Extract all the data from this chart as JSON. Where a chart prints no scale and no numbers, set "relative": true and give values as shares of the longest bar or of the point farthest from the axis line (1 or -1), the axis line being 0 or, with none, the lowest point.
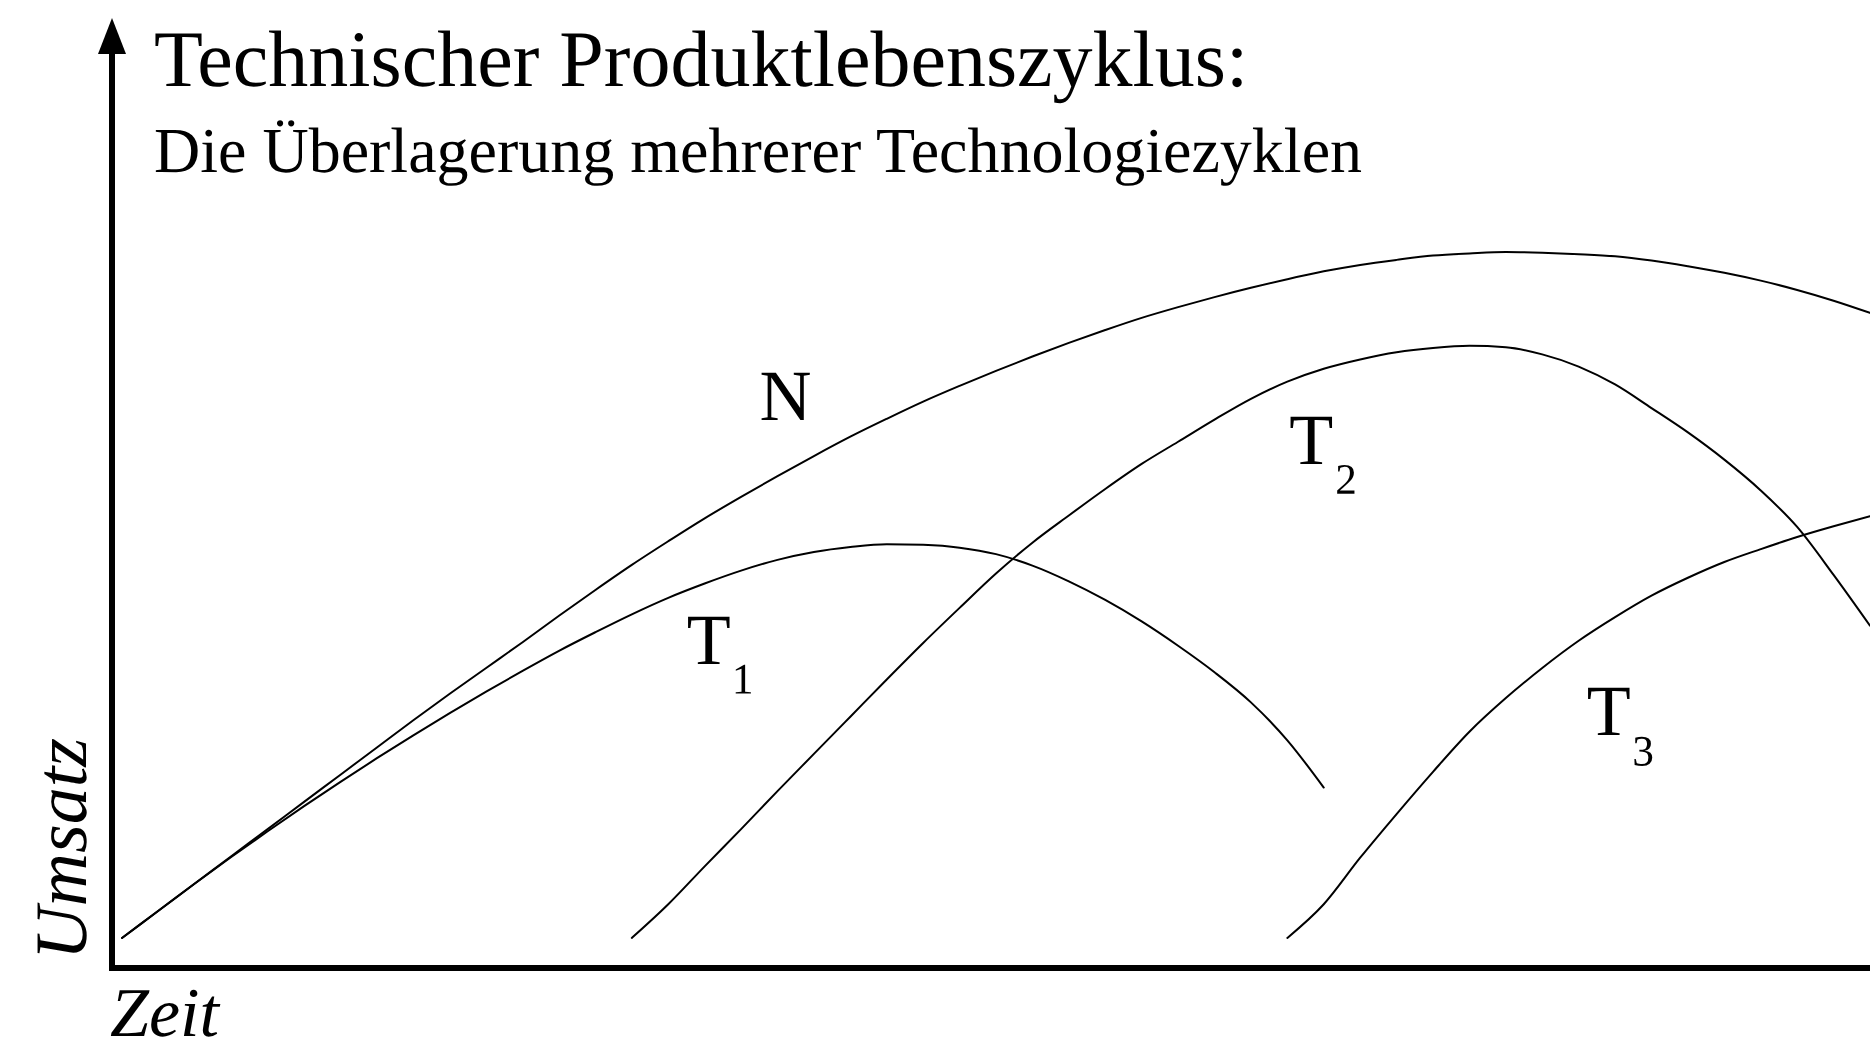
{
  "chart_data": {
    "type": "line",
    "title": "Technischer Produktlebenszyklus:",
    "subtitle": "Die Überlagerung mehrerer Technologiezyklen",
    "xlabel": "Zeit",
    "ylabel": "Umsatz",
    "relative": true,
    "categories": [
      null,
      null,
      null,
      null,
      null,
      null,
      null,
      null,
      null,
      null,
      null,
      null,
      null,
      null,
      null,
      null,
      null,
      null,
      null,
      null,
      null,
      null,
      null,
      null,
      null,
      null,
      null,
      null,
      null,
      null,
      null,
      null,
      null,
      null,
      null,
      null,
      null,
      null,
      null,
      null,
      null,
      null,
      null,
      null,
      null,
      null,
      null,
      null,
      null
    ],
    "series": [
      {
        "name": "N",
        "color": "#000000",
        "values": [
          0.042,
          0.08,
          0.118,
          0.156,
          0.194,
          0.232,
          0.27,
          0.308,
          0.346,
          0.383,
          0.419,
          0.455,
          0.492,
          0.528,
          0.563,
          0.596,
          0.628,
          0.658,
          0.687,
          0.715,
          0.742,
          0.767,
          0.791,
          0.813,
          0.834,
          0.854,
          0.873,
          0.891,
          0.908,
          0.923,
          0.937,
          0.95,
          0.962,
          0.973,
          0.982,
          0.989,
          0.995,
          0.998,
          1.0,
          0.999,
          0.997,
          0.994,
          0.988,
          0.98,
          0.971,
          0.96,
          0.947,
          0.932,
          0.915
        ]
      },
      {
        "name": "T₁",
        "color": "#000000",
        "values": [
          0.042,
          0.08,
          0.118,
          0.155,
          0.191,
          0.226,
          0.26,
          0.293,
          0.325,
          0.356,
          0.386,
          0.415,
          0.443,
          0.469,
          0.494,
          0.517,
          0.537,
          0.555,
          0.57,
          0.581,
          0.588,
          0.592,
          0.591,
          0.587,
          0.578,
          0.562,
          0.54,
          0.514,
          0.484,
          0.45,
          0.413,
          0.371,
          0.318,
          0.252,
          null,
          null,
          null,
          null,
          null,
          null,
          null,
          null,
          null,
          null,
          null,
          null,
          null,
          null,
          null
        ]
      },
      {
        "name": "T₂",
        "color": "#000000",
        "values": [
          null,
          null,
          null,
          null,
          null,
          null,
          null,
          null,
          null,
          null,
          null,
          null,
          null,
          null,
          0.042,
          0.089,
          0.142,
          0.194,
          0.247,
          0.299,
          0.351,
          0.403,
          0.454,
          0.503,
          0.551,
          0.594,
          0.632,
          0.669,
          0.704,
          0.735,
          0.766,
          0.795,
          0.819,
          0.837,
          0.85,
          0.86,
          0.866,
          0.869,
          0.867,
          0.857,
          0.84,
          0.815,
          0.782,
          0.748,
          0.71,
          0.667,
          0.616,
          0.549,
          0.478
        ]
      },
      {
        "name": "T₃",
        "color": "#000000",
        "values": [
          null,
          null,
          null,
          null,
          null,
          null,
          null,
          null,
          null,
          null,
          null,
          null,
          null,
          null,
          null,
          null,
          null,
          null,
          null,
          null,
          null,
          null,
          null,
          null,
          null,
          null,
          null,
          null,
          null,
          null,
          null,
          null,
          0.042,
          0.089,
          0.154,
          0.215,
          0.274,
          0.33,
          0.377,
          0.419,
          0.457,
          0.49,
          0.52,
          0.545,
          0.567,
          0.585,
          0.602,
          0.617,
          0.631
        ]
      }
    ]
  }
}
